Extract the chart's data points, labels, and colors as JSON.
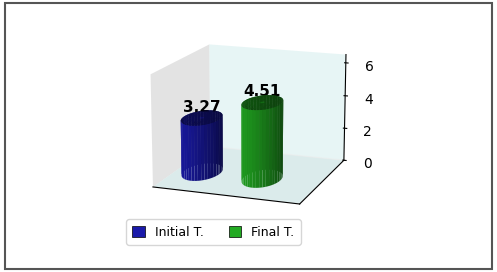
{
  "categories": [
    "Initial T.",
    "Final T."
  ],
  "values": [
    3.27,
    4.51
  ],
  "bar_colors": [
    "#1a1aaa",
    "#22aa22"
  ],
  "bar_colors_dark": [
    "#10107a",
    "#117711"
  ],
  "bar_colors_top": [
    "#3333cc",
    "#33cc33"
  ],
  "value_labels": [
    "3.27",
    "4.51"
  ],
  "ylim": [
    0,
    6
  ],
  "yticks": [
    0,
    2,
    4,
    6
  ],
  "legend_labels": [
    "Initial T.",
    "Final T."
  ],
  "background_wall": "#c8c8c8",
  "background_floor": "#b0d8d8",
  "background_right": "#d8f0f0",
  "border_color": "#555555",
  "label_fontsize": 11,
  "tick_fontsize": 10,
  "legend_fontsize": 9
}
